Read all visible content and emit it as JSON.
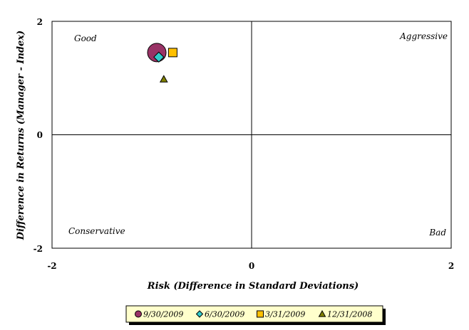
{
  "chart_data": {
    "type": "scatter",
    "title": "",
    "xlabel": "Risk (Difference in Standard Deviations)",
    "ylabel": "Difference in Returns (Manager - Index)",
    "xlim": [
      -2,
      2
    ],
    "ylim": [
      -2,
      2
    ],
    "x_ticks": [
      "-2",
      "0",
      "2"
    ],
    "y_ticks": [
      "2",
      "0",
      "-2"
    ],
    "grid": false,
    "legend_position": "bottom",
    "quadrant_labels": {
      "top_left": "Good",
      "top_right": "Aggressive",
      "bottom_left": "Conservative",
      "bottom_right": "Bad"
    },
    "series": [
      {
        "name": "9/30/2009",
        "marker": "circle",
        "color": "#993366",
        "x": -0.95,
        "y": 1.45
      },
      {
        "name": "6/30/2009",
        "marker": "diamond",
        "color": "#33CCCC",
        "x": -0.93,
        "y": 1.37
      },
      {
        "name": "3/31/2009",
        "marker": "square",
        "color": "#FFC000",
        "x": -0.79,
        "y": 1.45
      },
      {
        "name": "12/31/2008",
        "marker": "triangle",
        "color": "#808000",
        "x": -0.88,
        "y": 0.98
      }
    ]
  }
}
